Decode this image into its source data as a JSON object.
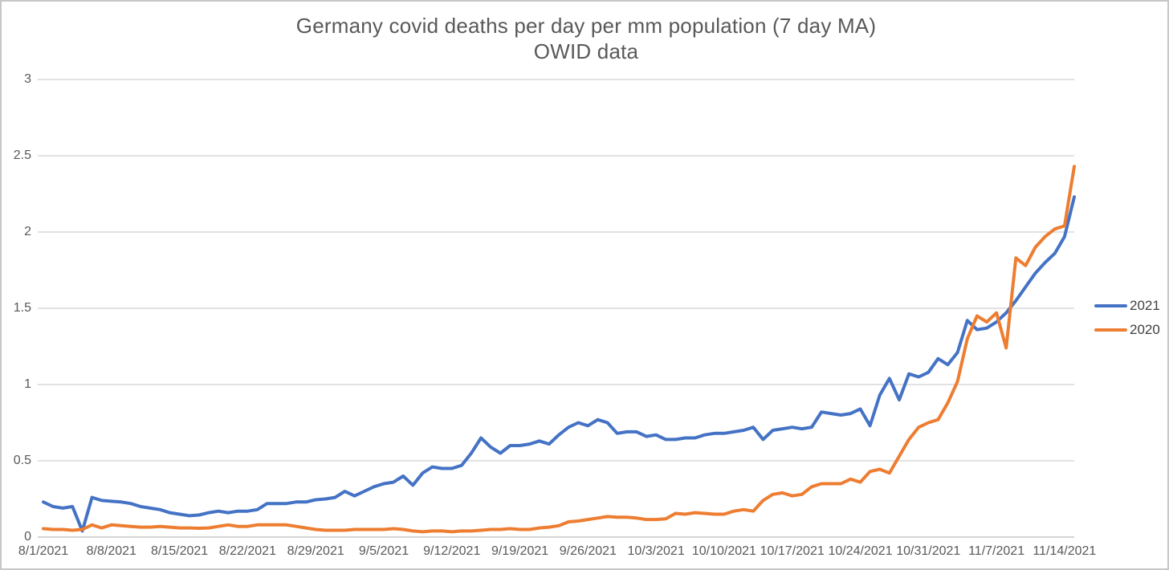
{
  "chart": {
    "title_line1": "Germany covid deaths per day per mm population (7 day MA)",
    "title_line2": "OWID data"
  },
  "chart_data": {
    "type": "line",
    "title": "Germany covid deaths per day per mm population (7 day MA)",
    "subtitle": "OWID data",
    "xlabel": "",
    "ylabel": "",
    "ylim": [
      0,
      3
    ],
    "y_ticks": [
      0,
      0.5,
      1,
      1.5,
      2,
      2.5,
      3
    ],
    "y_tick_labels": [
      "0",
      "0.5",
      "1",
      "1.5",
      "2",
      "2.5",
      "3"
    ],
    "x_tick_labels": [
      "8/1/2021",
      "8/8/2021",
      "8/15/2021",
      "8/22/2021",
      "8/29/2021",
      "9/5/2021",
      "9/12/2021",
      "9/19/2021",
      "9/26/2021",
      "10/3/2021",
      "10/10/2021",
      "10/17/2021",
      "10/24/2021",
      "10/31/2021",
      "11/7/2021",
      "11/14/2021"
    ],
    "x_tick_interval_days": 7,
    "x_start_label": "8/1/2021",
    "points_per_series": 107,
    "grid": true,
    "legend_position": "right",
    "colors": {
      "grid": "#d9d9d9",
      "axis": "#c6c6c6",
      "text": "#595959",
      "legend_text": "#404040"
    },
    "series": [
      {
        "name": "2021",
        "color": "#4472C4",
        "values": [
          0.23,
          0.2,
          0.19,
          0.2,
          0.04,
          0.26,
          0.24,
          0.235,
          0.23,
          0.22,
          0.2,
          0.19,
          0.18,
          0.16,
          0.15,
          0.14,
          0.145,
          0.16,
          0.17,
          0.16,
          0.17,
          0.17,
          0.18,
          0.22,
          0.22,
          0.22,
          0.23,
          0.23,
          0.245,
          0.25,
          0.26,
          0.3,
          0.27,
          0.3,
          0.33,
          0.35,
          0.36,
          0.4,
          0.34,
          0.42,
          0.46,
          0.45,
          0.45,
          0.47,
          0.55,
          0.65,
          0.59,
          0.55,
          0.6,
          0.6,
          0.61,
          0.63,
          0.61,
          0.67,
          0.72,
          0.75,
          0.73,
          0.77,
          0.75,
          0.68,
          0.69,
          0.69,
          0.66,
          0.67,
          0.64,
          0.64,
          0.65,
          0.65,
          0.67,
          0.68,
          0.68,
          0.69,
          0.7,
          0.72,
          0.64,
          0.7,
          0.71,
          0.72,
          0.71,
          0.72,
          0.82,
          0.81,
          0.8,
          0.81,
          0.84,
          0.73,
          0.93,
          1.04,
          0.9,
          1.07,
          1.05,
          1.08,
          1.17,
          1.13,
          1.21,
          1.42,
          1.36,
          1.37,
          1.41,
          1.47,
          1.55,
          1.64,
          1.73,
          1.8,
          1.86,
          1.97,
          2.23
        ]
      },
      {
        "name": "2020",
        "color": "#ED7D31",
        "values": [
          0.055,
          0.05,
          0.05,
          0.045,
          0.05,
          0.08,
          0.06,
          0.08,
          0.075,
          0.07,
          0.065,
          0.065,
          0.07,
          0.065,
          0.06,
          0.06,
          0.058,
          0.06,
          0.07,
          0.08,
          0.07,
          0.07,
          0.08,
          0.08,
          0.08,
          0.08,
          0.07,
          0.06,
          0.05,
          0.045,
          0.045,
          0.045,
          0.05,
          0.05,
          0.05,
          0.05,
          0.055,
          0.05,
          0.04,
          0.035,
          0.04,
          0.04,
          0.035,
          0.04,
          0.04,
          0.045,
          0.05,
          0.05,
          0.055,
          0.05,
          0.05,
          0.06,
          0.065,
          0.075,
          0.1,
          0.105,
          0.115,
          0.125,
          0.135,
          0.13,
          0.13,
          0.125,
          0.115,
          0.115,
          0.12,
          0.155,
          0.15,
          0.16,
          0.155,
          0.15,
          0.15,
          0.17,
          0.18,
          0.17,
          0.24,
          0.28,
          0.29,
          0.27,
          0.28,
          0.33,
          0.35,
          0.35,
          0.35,
          0.38,
          0.36,
          0.43,
          0.445,
          0.42,
          0.53,
          0.64,
          0.72,
          0.75,
          0.77,
          0.88,
          1.02,
          1.3,
          1.45,
          1.41,
          1.47,
          1.24,
          1.83,
          1.78,
          1.9,
          1.97,
          2.02,
          2.04,
          2.43
        ]
      }
    ]
  }
}
